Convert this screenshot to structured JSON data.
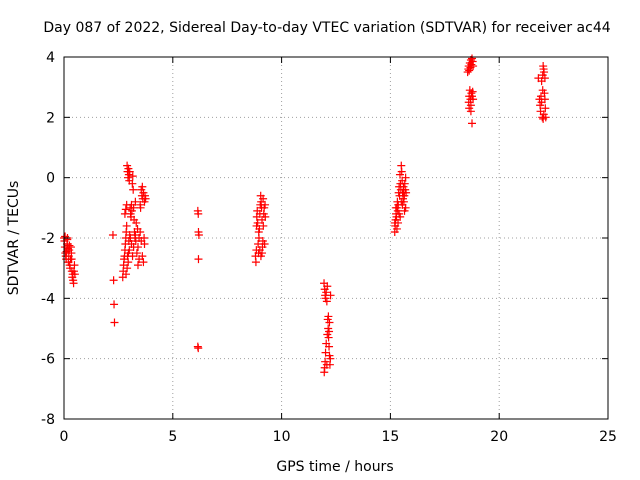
{
  "chart_data": {
    "type": "scatter",
    "title": "Day 087 of 2022, Sidereal Day-to-day VTEC variation (SDTVAR) for receiver ac44",
    "xlabel": "GPS time / hours",
    "ylabel": "SDTVAR / TECUs",
    "xlim": [
      0,
      25
    ],
    "ylim": [
      -8,
      4
    ],
    "xticks": [
      0,
      5,
      10,
      15,
      20,
      25
    ],
    "yticks": [
      -8,
      -6,
      -4,
      -2,
      0,
      2,
      4
    ],
    "grid": true,
    "marker": "+",
    "color": "#ff0000",
    "series": [
      {
        "name": "SDTVAR",
        "points": [
          [
            0.0,
            -2.0
          ],
          [
            0.02,
            -2.1
          ],
          [
            0.04,
            -2.3
          ],
          [
            0.06,
            -2.5
          ],
          [
            0.08,
            -2.6
          ],
          [
            0.1,
            -2.7
          ],
          [
            0.12,
            -2.45
          ],
          [
            0.14,
            -2.2
          ],
          [
            0.16,
            -2.0
          ],
          [
            0.18,
            -2.35
          ],
          [
            0.2,
            -2.8
          ],
          [
            0.22,
            -2.6
          ],
          [
            0.24,
            -2.4
          ],
          [
            0.26,
            -2.9
          ],
          [
            0.28,
            -3.0
          ],
          [
            0.3,
            -2.7
          ],
          [
            0.32,
            -2.3
          ],
          [
            0.34,
            -2.5
          ],
          [
            0.36,
            -3.1
          ],
          [
            0.38,
            -3.3
          ],
          [
            0.4,
            -3.2
          ],
          [
            0.42,
            -3.4
          ],
          [
            0.44,
            -3.5
          ],
          [
            0.46,
            -3.1
          ],
          [
            0.48,
            -2.9
          ],
          [
            0.5,
            -3.2
          ],
          [
            0.05,
            -1.95
          ],
          [
            0.15,
            -2.05
          ],
          [
            0.25,
            -2.25
          ],
          [
            0.35,
            -2.7
          ],
          [
            2.25,
            -1.9
          ],
          [
            2.28,
            -3.4
          ],
          [
            2.3,
            -4.2
          ],
          [
            2.32,
            -4.8
          ],
          [
            2.7,
            -3.3
          ],
          [
            2.72,
            -3.1
          ],
          [
            2.74,
            -2.9
          ],
          [
            2.76,
            -2.7
          ],
          [
            2.78,
            -2.6
          ],
          [
            2.8,
            -2.4
          ],
          [
            2.82,
            -2.2
          ],
          [
            2.84,
            -2.0
          ],
          [
            2.86,
            -1.8
          ],
          [
            2.88,
            -1.6
          ],
          [
            2.8,
            -1.2
          ],
          [
            2.84,
            -1.05
          ],
          [
            2.88,
            -0.9
          ],
          [
            2.9,
            0.4
          ],
          [
            2.92,
            0.2
          ],
          [
            2.94,
            0.0
          ],
          [
            2.96,
            0.3
          ],
          [
            2.98,
            0.1
          ],
          [
            3.0,
            -0.1
          ],
          [
            3.02,
            0.2
          ],
          [
            3.04,
            -1.0
          ],
          [
            3.06,
            -1.2
          ],
          [
            3.08,
            -1.3
          ],
          [
            3.1,
            -0.9
          ],
          [
            3.12,
            -1.1
          ],
          [
            3.14,
            -0.2
          ],
          [
            3.16,
            0.05
          ],
          [
            3.18,
            -0.4
          ],
          [
            3.2,
            -1.0
          ],
          [
            3.22,
            -1.4
          ],
          [
            3.24,
            -1.8
          ],
          [
            3.26,
            -2.0
          ],
          [
            3.28,
            -1.9
          ],
          [
            3.3,
            -2.1
          ],
          [
            3.2,
            -2.3
          ],
          [
            3.15,
            -2.6
          ],
          [
            3.1,
            -2.2
          ],
          [
            3.05,
            -2.0
          ],
          [
            3.0,
            -2.4
          ],
          [
            2.95,
            -2.8
          ],
          [
            2.9,
            -3.0
          ],
          [
            2.85,
            -3.2
          ],
          [
            2.92,
            -2.6
          ],
          [
            2.98,
            -2.1
          ],
          [
            3.02,
            -1.9
          ],
          [
            3.35,
            -2.5
          ],
          [
            3.4,
            -2.3
          ],
          [
            3.45,
            -2.0
          ],
          [
            3.5,
            -1.8
          ],
          [
            3.55,
            -2.1
          ],
          [
            3.6,
            -2.6
          ],
          [
            3.65,
            -2.8
          ],
          [
            3.68,
            -2.0
          ],
          [
            3.7,
            -2.2
          ],
          [
            3.55,
            -0.4
          ],
          [
            3.58,
            -0.6
          ],
          [
            3.6,
            -0.3
          ],
          [
            3.62,
            -0.7
          ],
          [
            3.65,
            -0.5
          ],
          [
            3.7,
            -0.8
          ],
          [
            3.72,
            -0.6
          ],
          [
            3.75,
            -0.7
          ],
          [
            3.5,
            -0.9
          ],
          [
            3.52,
            -1.0
          ],
          [
            3.45,
            -2.7
          ],
          [
            3.4,
            -2.9
          ],
          [
            3.38,
            -1.7
          ],
          [
            3.32,
            -1.5
          ],
          [
            3.28,
            -0.8
          ],
          [
            2.96,
            -2.5
          ],
          [
            6.15,
            -1.1
          ],
          [
            6.17,
            -1.2
          ],
          [
            6.18,
            -1.8
          ],
          [
            6.2,
            -1.9
          ],
          [
            6.18,
            -2.7
          ],
          [
            6.15,
            -5.6
          ],
          [
            6.17,
            -5.65
          ],
          [
            8.8,
            -2.6
          ],
          [
            8.82,
            -2.8
          ],
          [
            8.84,
            -2.4
          ],
          [
            8.86,
            -1.3
          ],
          [
            8.88,
            -1.1
          ],
          [
            8.9,
            -1.5
          ],
          [
            8.92,
            -2.2
          ],
          [
            8.94,
            -2.5
          ],
          [
            8.96,
            -2.0
          ],
          [
            8.98,
            -1.7
          ],
          [
            9.0,
            -1.2
          ],
          [
            9.02,
            -0.9
          ],
          [
            9.04,
            -0.6
          ],
          [
            9.06,
            -0.8
          ],
          [
            9.08,
            -1.0
          ],
          [
            9.1,
            -1.4
          ],
          [
            9.12,
            -2.3
          ],
          [
            9.14,
            -2.1
          ],
          [
            9.16,
            -1.6
          ],
          [
            9.18,
            -1.2
          ],
          [
            9.2,
            -1.0
          ],
          [
            9.22,
            -2.2
          ],
          [
            9.24,
            -0.9
          ],
          [
            9.25,
            -1.3
          ],
          [
            9.1,
            -2.5
          ],
          [
            8.95,
            -1.8
          ],
          [
            9.05,
            -2.6
          ],
          [
            9.15,
            -0.7
          ],
          [
            8.85,
            -1.6
          ],
          [
            9.0,
            -2.4
          ],
          [
            11.95,
            -3.5
          ],
          [
            11.98,
            -3.7
          ],
          [
            12.0,
            -3.9
          ],
          [
            12.02,
            -4.0
          ],
          [
            12.05,
            -3.8
          ],
          [
            12.08,
            -4.1
          ],
          [
            12.1,
            -3.6
          ],
          [
            12.12,
            -4.7
          ],
          [
            12.14,
            -5.0
          ],
          [
            12.16,
            -5.3
          ],
          [
            12.18,
            -5.6
          ],
          [
            12.2,
            -5.9
          ],
          [
            12.22,
            -6.2
          ],
          [
            12.24,
            -6.0
          ],
          [
            12.2,
            -4.8
          ],
          [
            12.1,
            -5.2
          ],
          [
            12.05,
            -5.5
          ],
          [
            12.0,
            -6.1
          ],
          [
            11.98,
            -6.3
          ],
          [
            11.96,
            -6.45
          ],
          [
            12.02,
            -5.8
          ],
          [
            12.08,
            -6.2
          ],
          [
            12.15,
            -4.6
          ],
          [
            12.18,
            -5.1
          ],
          [
            12.25,
            -3.9
          ],
          [
            15.2,
            -1.8
          ],
          [
            15.22,
            -1.6
          ],
          [
            15.24,
            -1.4
          ],
          [
            15.26,
            -1.2
          ],
          [
            15.28,
            -1.3
          ],
          [
            15.3,
            -1.0
          ],
          [
            15.32,
            -0.8
          ],
          [
            15.34,
            -1.1
          ],
          [
            15.36,
            -0.9
          ],
          [
            15.38,
            -0.5
          ],
          [
            15.4,
            -0.3
          ],
          [
            15.42,
            -0.6
          ],
          [
            15.44,
            0.1
          ],
          [
            15.46,
            -0.2
          ],
          [
            15.48,
            -0.4
          ],
          [
            15.5,
            0.4
          ],
          [
            15.52,
            0.2
          ],
          [
            15.54,
            -0.1
          ],
          [
            15.56,
            -0.5
          ],
          [
            15.58,
            -0.7
          ],
          [
            15.6,
            -0.3
          ],
          [
            15.62,
            -0.8
          ],
          [
            15.64,
            -0.6
          ],
          [
            15.66,
            -0.2
          ],
          [
            15.68,
            -0.4
          ],
          [
            15.7,
            -1.0
          ],
          [
            15.72,
            -0.5
          ],
          [
            15.3,
            -1.7
          ],
          [
            15.35,
            -1.5
          ],
          [
            15.45,
            -1.3
          ],
          [
            15.55,
            -0.9
          ],
          [
            15.65,
            -1.1
          ],
          [
            15.25,
            -1.0
          ],
          [
            15.4,
            -1.2
          ],
          [
            15.5,
            -0.8
          ],
          [
            15.6,
            -0.5
          ],
          [
            15.7,
            0.0
          ],
          [
            15.2,
            -1.5
          ],
          [
            18.55,
            3.5
          ],
          [
            18.58,
            3.6
          ],
          [
            18.6,
            3.7
          ],
          [
            18.62,
            3.55
          ],
          [
            18.65,
            3.8
          ],
          [
            18.68,
            3.65
          ],
          [
            18.7,
            3.9
          ],
          [
            18.72,
            3.75
          ],
          [
            18.75,
            3.95
          ],
          [
            18.78,
            3.85
          ],
          [
            18.8,
            3.7
          ],
          [
            18.6,
            2.5
          ],
          [
            18.62,
            2.7
          ],
          [
            18.65,
            2.9
          ],
          [
            18.68,
            2.6
          ],
          [
            18.7,
            2.4
          ],
          [
            18.72,
            2.8
          ],
          [
            18.75,
            2.7
          ],
          [
            18.78,
            2.85
          ],
          [
            18.8,
            2.6
          ],
          [
            18.62,
            2.3
          ],
          [
            18.7,
            2.2
          ],
          [
            18.75,
            1.8
          ],
          [
            21.8,
            3.3
          ],
          [
            21.85,
            2.6
          ],
          [
            21.88,
            2.4
          ],
          [
            21.9,
            2.2
          ],
          [
            21.92,
            2.7
          ],
          [
            21.95,
            2.5
          ],
          [
            21.98,
            2.0
          ],
          [
            22.0,
            3.4
          ],
          [
            22.02,
            3.7
          ],
          [
            22.04,
            3.6
          ],
          [
            22.06,
            3.5
          ],
          [
            22.08,
            2.8
          ],
          [
            22.1,
            2.6
          ],
          [
            22.12,
            2.3
          ],
          [
            22.14,
            2.0
          ],
          [
            22.02,
            1.95
          ],
          [
            22.05,
            2.1
          ],
          [
            22.0,
            2.9
          ],
          [
            22.1,
            3.3
          ],
          [
            21.95,
            3.2
          ]
        ]
      }
    ]
  }
}
